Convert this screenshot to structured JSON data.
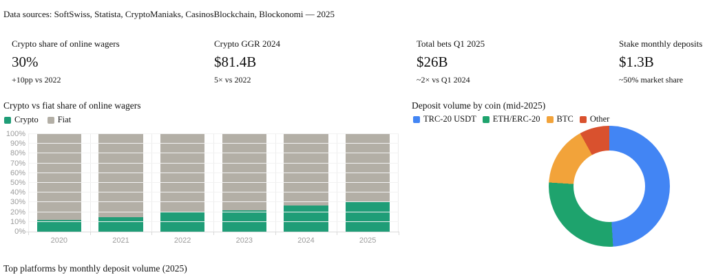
{
  "header": {
    "data_sources": "Data sources: SoftSwiss, Statista, CryptoManiaks, CasinosBlockchain, Blockonomi — 2025"
  },
  "kpis": [
    {
      "label": "Crypto share of online wagers",
      "value": "30%",
      "note": "+10pp vs 2022"
    },
    {
      "label": "Crypto GGR 2024",
      "value": "$81.4B",
      "note": "5× vs 2022"
    },
    {
      "label": "Total bets Q1 2025",
      "value": "$26B",
      "note": "~2× vs Q1 2024"
    },
    {
      "label": "Stake monthly deposits",
      "value": "$1.3B",
      "note": "~50% market share"
    }
  ],
  "footer": {
    "title": "Top platforms by monthly deposit volume (2025)"
  },
  "chart_data": [
    {
      "type": "bar",
      "stacked": true,
      "title": "Crypto vs fiat share of online wagers",
      "categories": [
        "2020",
        "2021",
        "2022",
        "2023",
        "2024",
        "2025"
      ],
      "series": [
        {
          "name": "Crypto",
          "color": "#1f9d77",
          "values": [
            12,
            15,
            20,
            22,
            27,
            30
          ]
        },
        {
          "name": "Fiat",
          "color": "#b3afa6",
          "values": [
            88,
            85,
            80,
            78,
            73,
            70
          ]
        }
      ],
      "y_ticks": [
        "0%",
        "10%",
        "20%",
        "30%",
        "40%",
        "50%",
        "60%",
        "70%",
        "80%",
        "90%",
        "100%"
      ],
      "ylim": [
        0,
        100
      ],
      "grid": true,
      "legend_position": "top-left"
    },
    {
      "type": "pie",
      "donut": true,
      "title": "Deposit volume by coin (mid-2025)",
      "slices": [
        {
          "label": "TRC-20 USDT",
          "value": 49,
          "color": "#4285f4"
        },
        {
          "label": "ETH/ERC-20",
          "value": 27,
          "color": "#1ea36d"
        },
        {
          "label": "BTC",
          "value": 16,
          "color": "#f2a33a"
        },
        {
          "label": "Other",
          "value": 8,
          "color": "#d9512e"
        }
      ],
      "legend_position": "top-left"
    }
  ]
}
